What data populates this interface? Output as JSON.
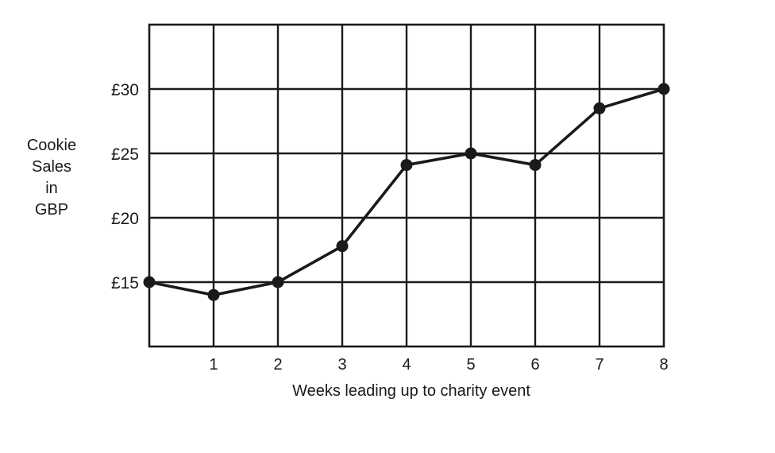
{
  "chart_data": {
    "type": "line",
    "title": "",
    "xlabel": "Weeks leading up to charity event",
    "ylabel_lines": [
      "Cookie",
      "Sales",
      "in",
      "GBP"
    ],
    "x": [
      0,
      1,
      2,
      3,
      4,
      5,
      6,
      7,
      8
    ],
    "x_tick_labels": [
      "1",
      "2",
      "3",
      "4",
      "5",
      "6",
      "7",
      "8"
    ],
    "x_ticks": [
      1,
      2,
      3,
      4,
      5,
      6,
      7,
      8
    ],
    "y_ticks": [
      15,
      20,
      25,
      30
    ],
    "y_tick_labels": [
      "£15",
      "£20",
      "£25",
      "£30"
    ],
    "xlim": [
      0,
      8
    ],
    "ylim": [
      10,
      35
    ],
    "grid": true,
    "series": [
      {
        "values": [
          15,
          14,
          15,
          17.8,
          24.1,
          25,
          24.1,
          28.5,
          30
        ]
      }
    ],
    "line_color": "#1a1a1a",
    "grid_color": "#1a1a1a"
  }
}
